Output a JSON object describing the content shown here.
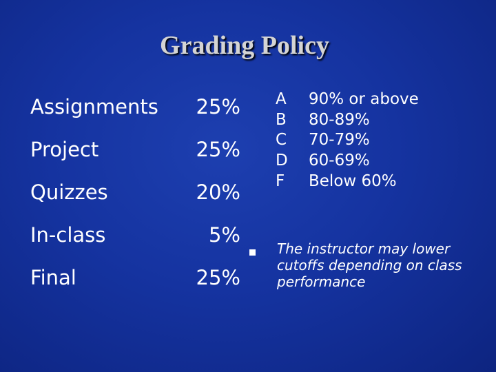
{
  "title": "Grading Policy",
  "weights": [
    {
      "item": "Assignments",
      "percent": "25%"
    },
    {
      "item": "Project",
      "percent": "25%"
    },
    {
      "item": "Quizzes",
      "percent": "20%"
    },
    {
      "item": "In-class",
      "percent": "5%"
    },
    {
      "item": "Final",
      "percent": "25%"
    }
  ],
  "grade_scale": [
    {
      "letter": "A",
      "range": "90% or above"
    },
    {
      "letter": "B",
      "range": "80-89%"
    },
    {
      "letter": "C",
      "range": "70-79%"
    },
    {
      "letter": "D",
      "range": "60-69%"
    },
    {
      "letter": "F",
      "range": "Below 60%"
    }
  ],
  "note": "The instructor may lower cutoffs depending on class performance",
  "colors": {
    "background": "#1533a0",
    "title": "#d4d4d4",
    "text": "#ffffff"
  }
}
